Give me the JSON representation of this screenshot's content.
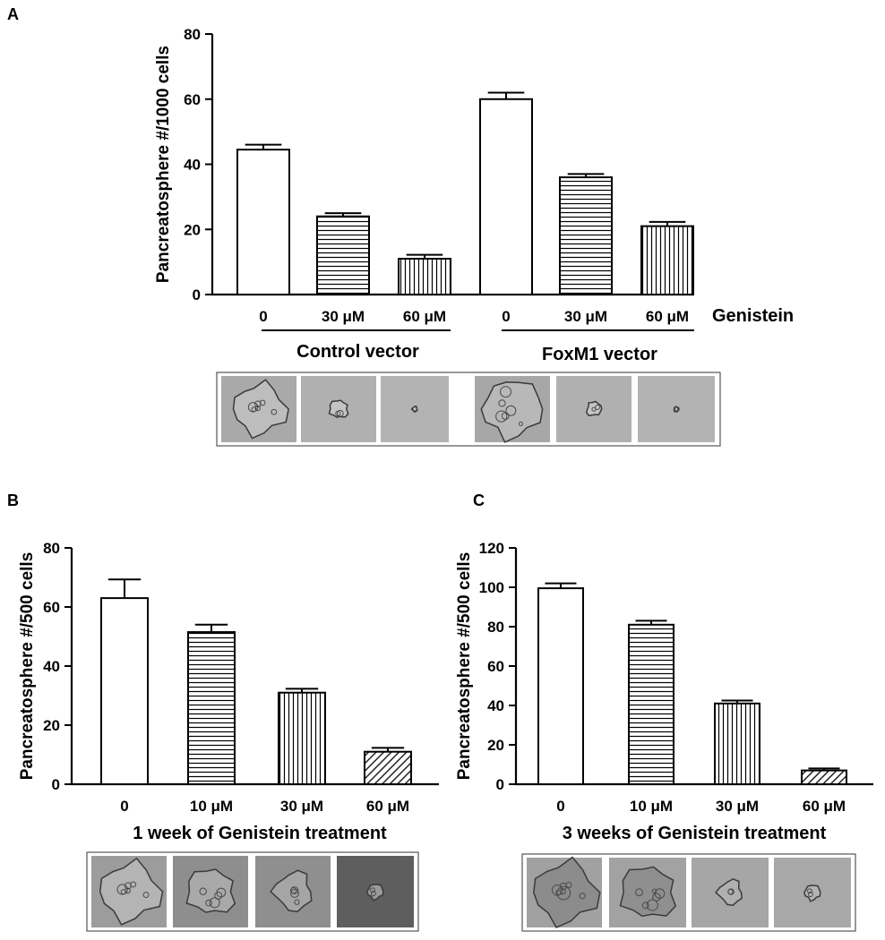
{
  "chart_data": [
    {
      "panel": "A",
      "type": "bar",
      "ylabel": "Pancreatosphere #/1000 cells",
      "ylim": [
        0,
        80
      ],
      "yticks": [
        0,
        20,
        40,
        60,
        80
      ],
      "categories": [
        "0",
        "30 μM",
        "60 μM",
        "0",
        "30 μM",
        "60 μM"
      ],
      "values": [
        44.5,
        24,
        11,
        60,
        36,
        21
      ],
      "errors": [
        1.5,
        1.0,
        1.2,
        2.0,
        1.0,
        1.3
      ],
      "patterns": [
        "none",
        "horizontal",
        "vertical",
        "none",
        "horizontal",
        "vertical"
      ],
      "trailing_label": "Genistein",
      "groups": [
        {
          "label": "Control vector",
          "indices": [
            0,
            1,
            2
          ]
        },
        {
          "label": "FoxM1 vector",
          "indices": [
            3,
            4,
            5
          ]
        }
      ]
    },
    {
      "panel": "B",
      "type": "bar",
      "ylabel": "Pancreatosphere #/500 cells",
      "ylim": [
        0,
        80
      ],
      "yticks": [
        0,
        20,
        40,
        60,
        80
      ],
      "categories": [
        "0",
        "10 μM",
        "30 μM",
        "60 μM"
      ],
      "values": [
        63,
        51.5,
        31,
        11
      ],
      "errors": [
        6.3,
        2.5,
        1.3,
        1.3
      ],
      "patterns": [
        "none",
        "horizontal",
        "vertical",
        "diagonal"
      ],
      "xlabel": "1 week of Genistein treatment"
    },
    {
      "panel": "C",
      "type": "bar",
      "ylabel": "Pancreatosphere #/500 cells",
      "ylim": [
        0,
        120
      ],
      "yticks": [
        0,
        20,
        40,
        60,
        80,
        100,
        120
      ],
      "categories": [
        "0",
        "10 μM",
        "30 μM",
        "60 μM"
      ],
      "values": [
        99.5,
        81,
        41,
        7
      ],
      "errors": [
        2.5,
        2.0,
        1.5,
        1.0
      ],
      "patterns": [
        "none",
        "horizontal",
        "vertical",
        "diagonal"
      ],
      "xlabel": "3 weeks of Genistein treatment"
    }
  ]
}
